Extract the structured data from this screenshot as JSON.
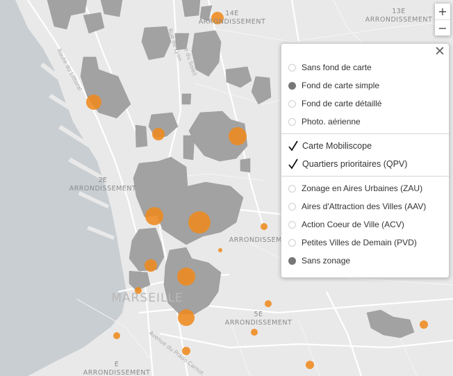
{
  "map": {
    "city_label": "MARSEILLE",
    "districts": [
      {
        "number": "14E",
        "word": "ARRONDISSEMENT"
      },
      {
        "number": "13E",
        "word": "ARRONDISSEMENT"
      },
      {
        "number": "2E",
        "word": "ARRONDISSEMENT"
      },
      {
        "number": "",
        "word": "ARRONDISSEMENT"
      },
      {
        "number": "5E",
        "word": "ARRONDISSEMENT"
      },
      {
        "number": "E",
        "word": "ARRONDISSEMENT"
      }
    ],
    "streets": [
      "Route du Littoral",
      "Rue de Lyon",
      "Rue du Soleil",
      "Avenue du Prado Carnot"
    ],
    "colors": {
      "background": "#e9e9e9",
      "sea": "#c9ced2",
      "zones": "#a2a2a2",
      "circles": "#ee8a1e"
    }
  },
  "zoom": {
    "in_label": "+",
    "out_label": "−"
  },
  "layers_panel": {
    "close_label": "✕",
    "basemaps": [
      {
        "label": "Sans fond de carte",
        "selected": false
      },
      {
        "label": "Fond de carte simple",
        "selected": true
      },
      {
        "label": "Fond de carte détaillé",
        "selected": false
      },
      {
        "label": "Photo. aérienne",
        "selected": false
      }
    ],
    "overlays": [
      {
        "label": "Carte Mobiliscope",
        "checked": true
      },
      {
        "label": "Quartiers prioritaires (QPV)",
        "checked": true
      }
    ],
    "zonings": [
      {
        "label": "Zonage en Aires Urbaines (ZAU)",
        "selected": false
      },
      {
        "label": "Aires d'Attraction des Villes (AAV)",
        "selected": false
      },
      {
        "label": "Action Coeur de Ville (ACV)",
        "selected": false
      },
      {
        "label": "Petites Villes de Demain (PVD)",
        "selected": false
      },
      {
        "label": "Sans zonage",
        "selected": true
      }
    ]
  }
}
